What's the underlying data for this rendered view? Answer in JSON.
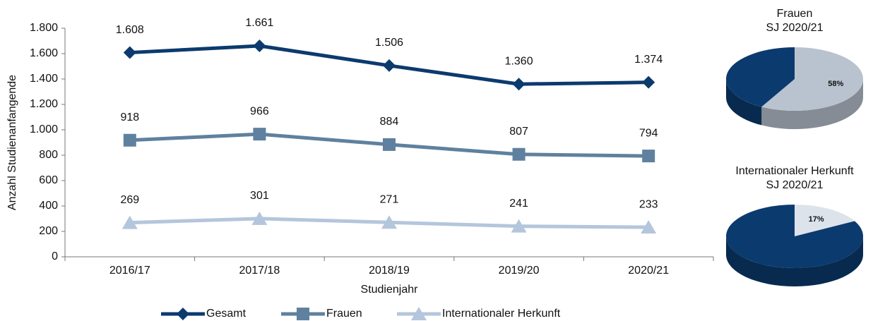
{
  "chart_data": [
    {
      "type": "line",
      "categories": [
        "2016/17",
        "2017/18",
        "2018/19",
        "2019/20",
        "2020/21"
      ],
      "x_label": "Studienjahr",
      "y_label": "Anzahl Studienanfangende",
      "ylim": [
        0,
        1800
      ],
      "yticks": [
        0,
        200,
        400,
        600,
        800,
        {
          "value": 1000,
          "label": "1.000"
        },
        {
          "value": 1200,
          "label": "1.200"
        },
        {
          "value": 1400,
          "label": "1.400"
        },
        {
          "value": 1600,
          "label": "1.600"
        },
        {
          "value": 1800,
          "label": "1.800"
        }
      ],
      "series": [
        {
          "name": "Gesamt",
          "color": "#0b3a6e",
          "marker": "diamond",
          "values": [
            1608,
            1661,
            1506,
            1360,
            1374
          ],
          "value_labels": [
            "1.608",
            "1.661",
            "1.506",
            "1.360",
            "1.374"
          ]
        },
        {
          "name": "Frauen",
          "color": "#5f819f",
          "marker": "square",
          "values": [
            918,
            966,
            884,
            807,
            794
          ]
        },
        {
          "name": "Internationaler Herkunft",
          "color": "#b4c6dc",
          "marker": "triangle",
          "values": [
            269,
            301,
            271,
            241,
            233
          ]
        }
      ],
      "legend": "bottom"
    },
    {
      "type": "pie",
      "title": [
        "Frauen",
        "SJ 2020/21"
      ],
      "values": [
        58,
        42
      ],
      "value_labels": [
        "58%",
        null
      ],
      "colors": [
        "#b9c3cf",
        "#0b3a6e"
      ]
    },
    {
      "type": "pie",
      "title": [
        "Internationaler Herkunft",
        "SJ 2020/21"
      ],
      "values": [
        17,
        83
      ],
      "value_labels": [
        "17%",
        null
      ],
      "colors": [
        "#dde3ea",
        "#0b3a6e"
      ]
    }
  ]
}
